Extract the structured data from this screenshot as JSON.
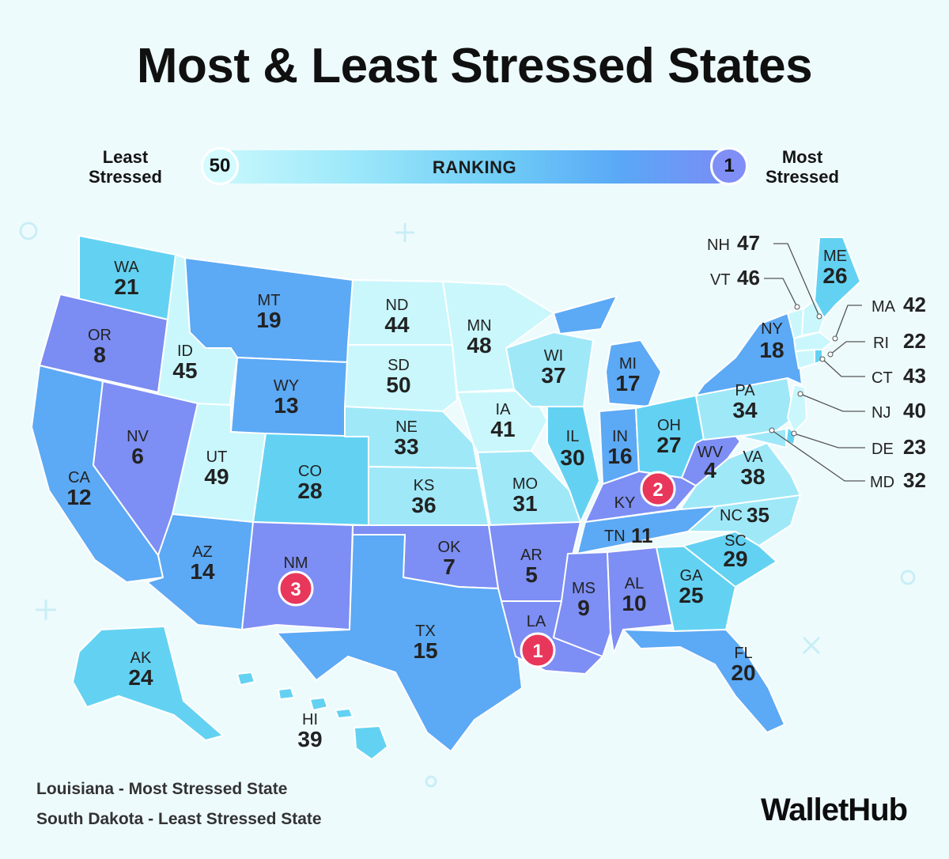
{
  "title": "Most & Least Stressed States",
  "legend": {
    "left_label": [
      "Least",
      "Stressed"
    ],
    "right_label": [
      "Most",
      "Stressed"
    ],
    "bar_label": "RANKING",
    "low_end": "50",
    "high_end": "1",
    "scale_colors": [
      "#c9f8fd",
      "#9fe9fa",
      "#6fcdf6",
      "#5aa8f6",
      "#7b8bf5"
    ]
  },
  "states": {
    "WA": {
      "abbr": "WA",
      "rank": "21"
    },
    "OR": {
      "abbr": "OR",
      "rank": "8"
    },
    "CA": {
      "abbr": "CA",
      "rank": "12"
    },
    "ID": {
      "abbr": "ID",
      "rank": "45"
    },
    "NV": {
      "abbr": "NV",
      "rank": "6"
    },
    "MT": {
      "abbr": "MT",
      "rank": "19"
    },
    "WY": {
      "abbr": "WY",
      "rank": "13"
    },
    "UT": {
      "abbr": "UT",
      "rank": "49"
    },
    "AZ": {
      "abbr": "AZ",
      "rank": "14"
    },
    "CO": {
      "abbr": "CO",
      "rank": "28"
    },
    "NM": {
      "abbr": "NM",
      "rank": "3"
    },
    "ND": {
      "abbr": "ND",
      "rank": "44"
    },
    "SD": {
      "abbr": "SD",
      "rank": "50"
    },
    "NE": {
      "abbr": "NE",
      "rank": "33"
    },
    "KS": {
      "abbr": "KS",
      "rank": "36"
    },
    "OK": {
      "abbr": "OK",
      "rank": "7"
    },
    "TX": {
      "abbr": "TX",
      "rank": "15"
    },
    "MN": {
      "abbr": "MN",
      "rank": "48"
    },
    "IA": {
      "abbr": "IA",
      "rank": "41"
    },
    "MO": {
      "abbr": "MO",
      "rank": "31"
    },
    "AR": {
      "abbr": "AR",
      "rank": "5"
    },
    "LA": {
      "abbr": "LA",
      "rank": "1"
    },
    "WI": {
      "abbr": "WI",
      "rank": "37"
    },
    "IL": {
      "abbr": "IL",
      "rank": "30"
    },
    "MI": {
      "abbr": "MI",
      "rank": "17"
    },
    "IN": {
      "abbr": "IN",
      "rank": "16"
    },
    "OH": {
      "abbr": "OH",
      "rank": "27"
    },
    "KY": {
      "abbr": "KY",
      "rank": "2"
    },
    "TN": {
      "abbr": "TN",
      "rank": "11"
    },
    "MS": {
      "abbr": "MS",
      "rank": "9"
    },
    "AL": {
      "abbr": "AL",
      "rank": "10"
    },
    "GA": {
      "abbr": "GA",
      "rank": "25"
    },
    "FL": {
      "abbr": "FL",
      "rank": "20"
    },
    "SC": {
      "abbr": "SC",
      "rank": "29"
    },
    "NC": {
      "abbr": "NC",
      "rank": "35"
    },
    "VA": {
      "abbr": "VA",
      "rank": "38"
    },
    "WV": {
      "abbr": "WV",
      "rank": "4"
    },
    "PA": {
      "abbr": "PA",
      "rank": "34"
    },
    "NY": {
      "abbr": "NY",
      "rank": "18"
    },
    "ME": {
      "abbr": "ME",
      "rank": "26"
    },
    "AK": {
      "abbr": "AK",
      "rank": "24"
    },
    "HI": {
      "abbr": "HI",
      "rank": "39"
    },
    "NH": {
      "abbr": "NH",
      "rank": "47"
    },
    "VT": {
      "abbr": "VT",
      "rank": "46"
    },
    "MA": {
      "abbr": "MA",
      "rank": "42"
    },
    "RI": {
      "abbr": "RI",
      "rank": "22"
    },
    "CT": {
      "abbr": "CT",
      "rank": "43"
    },
    "NJ": {
      "abbr": "NJ",
      "rank": "40"
    },
    "DE": {
      "abbr": "DE",
      "rank": "23"
    },
    "MD": {
      "abbr": "MD",
      "rank": "32"
    }
  },
  "footer": {
    "most": "Louisiana - Most Stressed State",
    "least": "South Dakota - Least Stressed State"
  },
  "brand": "WalletHub"
}
